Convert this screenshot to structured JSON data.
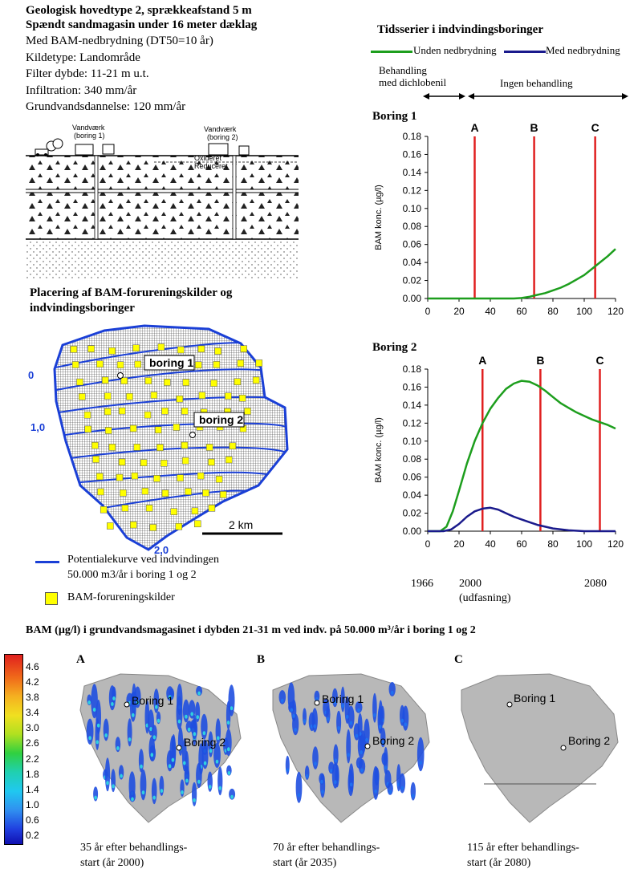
{
  "header": {
    "line1": "Geologisk hovedtype 2, sprækkeafstand 5 m",
    "line2": "Spændt sandmagasin under 16 meter dæklag",
    "line3": "Med BAM-nedbrydning (DT50=10 år)",
    "line4": "Kildetype: Landområde",
    "line5": "Filter dybde: 11-21 m u.t.",
    "line6": "Infiltration: 340 mm/år",
    "line7": "Grundvandsdannelse: 120 mm/år"
  },
  "cross_section": {
    "label_left": "Vandværk\n(boring 1)",
    "label_right": "Vandværk\n(boring 2)",
    "oxideret": "Oxideret",
    "reduceret": "Reduceret"
  },
  "map_section": {
    "title_line1": "Placering af BAM-forureningskilder og",
    "title_line2": "indvindingsboringer",
    "boring1": "boring 1",
    "boring2": "boring 2",
    "contour_labels": [
      "0",
      "1,0",
      "2,0"
    ],
    "scalebar": "2 km",
    "legend_curve_line1": "Potentialekurve ved indvindingen",
    "legend_curve_line2": "50.000 m3/år i boring 1 og 2",
    "legend_sources": "BAM-forureningskilder",
    "colors": {
      "contour": "#1a3fd6",
      "source": "#ffff00"
    }
  },
  "timeseries": {
    "title": "Tidsserier i indvindingsboringer",
    "legend_green": "Unden nedbrydning",
    "legend_blue": "Med nedbrydning",
    "behandling_line1": "Behandling",
    "behandling_line2": "med dichlobenil",
    "ingen_behandling": "Ingen behandling",
    "markers": [
      "A",
      "B",
      "C"
    ],
    "year_labels": [
      "1966",
      "2000",
      "2080"
    ],
    "udfasning": "(udfasning)",
    "colors": {
      "green": "#1d9e1d",
      "blue": "#1a1a8c",
      "marker": "#e02020"
    }
  },
  "chart_data": [
    {
      "type": "line",
      "title": "Boring 1",
      "ylabel": "BAM konc. (µg/l)",
      "xlim": [
        0,
        120
      ],
      "ylim": [
        0,
        0.18
      ],
      "x_ticks": [
        0,
        20,
        40,
        60,
        80,
        100,
        120
      ],
      "y_ticks": [
        "0.00",
        "0.02",
        "0.04",
        "0.06",
        "0.08",
        "0.10",
        "0.12",
        "0.14",
        "0.16",
        "0.18"
      ],
      "vlines": [
        {
          "label": "A",
          "x": 30
        },
        {
          "label": "B",
          "x": 68
        },
        {
          "label": "C",
          "x": 107
        }
      ],
      "series": [
        {
          "color": "green",
          "x": [
            0,
            20,
            40,
            55,
            60,
            65,
            70,
            75,
            80,
            85,
            90,
            95,
            100,
            105,
            110,
            115,
            120
          ],
          "y": [
            0,
            0,
            0,
            0,
            0.0005,
            0.002,
            0.004,
            0.006,
            0.009,
            0.012,
            0.016,
            0.021,
            0.026,
            0.033,
            0.04,
            0.047,
            0.055
          ]
        }
      ]
    },
    {
      "type": "line",
      "title": "Boring 2",
      "ylabel": "BAM konc. (µg/l)",
      "xlim": [
        0,
        120
      ],
      "ylim": [
        0,
        0.18
      ],
      "x_ticks": [
        0,
        20,
        40,
        60,
        80,
        100,
        120
      ],
      "y_ticks": [
        "0.00",
        "0.02",
        "0.04",
        "0.06",
        "0.08",
        "0.10",
        "0.12",
        "0.14",
        "0.16",
        "0.18"
      ],
      "vlines": [
        {
          "label": "A",
          "x": 35
        },
        {
          "label": "B",
          "x": 72
        },
        {
          "label": "C",
          "x": 110
        }
      ],
      "series": [
        {
          "color": "green",
          "x": [
            0,
            8,
            12,
            16,
            20,
            25,
            30,
            35,
            40,
            45,
            50,
            55,
            60,
            65,
            70,
            75,
            80,
            85,
            90,
            95,
            100,
            105,
            110,
            115,
            120
          ],
          "y": [
            0,
            0,
            0.005,
            0.022,
            0.045,
            0.075,
            0.1,
            0.12,
            0.136,
            0.148,
            0.158,
            0.164,
            0.167,
            0.166,
            0.162,
            0.156,
            0.149,
            0.142,
            0.137,
            0.132,
            0.128,
            0.124,
            0.121,
            0.118,
            0.114
          ]
        },
        {
          "color": "blue",
          "x": [
            0,
            10,
            15,
            20,
            25,
            30,
            35,
            40,
            45,
            50,
            55,
            60,
            65,
            70,
            75,
            80,
            90,
            100,
            110,
            120
          ],
          "y": [
            0,
            0,
            0.002,
            0.008,
            0.016,
            0.022,
            0.025,
            0.026,
            0.024,
            0.02,
            0.016,
            0.013,
            0.01,
            0.007,
            0.005,
            0.003,
            0.001,
            0,
            0,
            0
          ]
        }
      ]
    }
  ],
  "bottom": {
    "title": "BAM (µg/l) i grundvandsmagasinet i dybden 21-31 m ved indv. på 50.000 m³/år i boring 1 og 2",
    "colorbar_values": [
      "4.6",
      "4.2",
      "3.8",
      "3.4",
      "3.0",
      "2.6",
      "2.2",
      "1.8",
      "1.4",
      "1.0",
      "0.6",
      "0.2"
    ],
    "panels": [
      {
        "letter": "A",
        "boring1": "Boring 1",
        "boring2": "Boring 2",
        "caption_line1": "35 år efter behandlings-",
        "caption_line2": "start (år 2000)"
      },
      {
        "letter": "B",
        "boring1": "Boring 1",
        "boring2": "Boring 2",
        "caption_line1": "70 år efter behandlings-",
        "caption_line2": "start (år 2035)"
      },
      {
        "letter": "C",
        "boring1": "Boring 1",
        "boring2": "Boring 2",
        "caption_line1": "115 år efter behandlings-",
        "caption_line2": "start (år 2080)"
      }
    ]
  }
}
